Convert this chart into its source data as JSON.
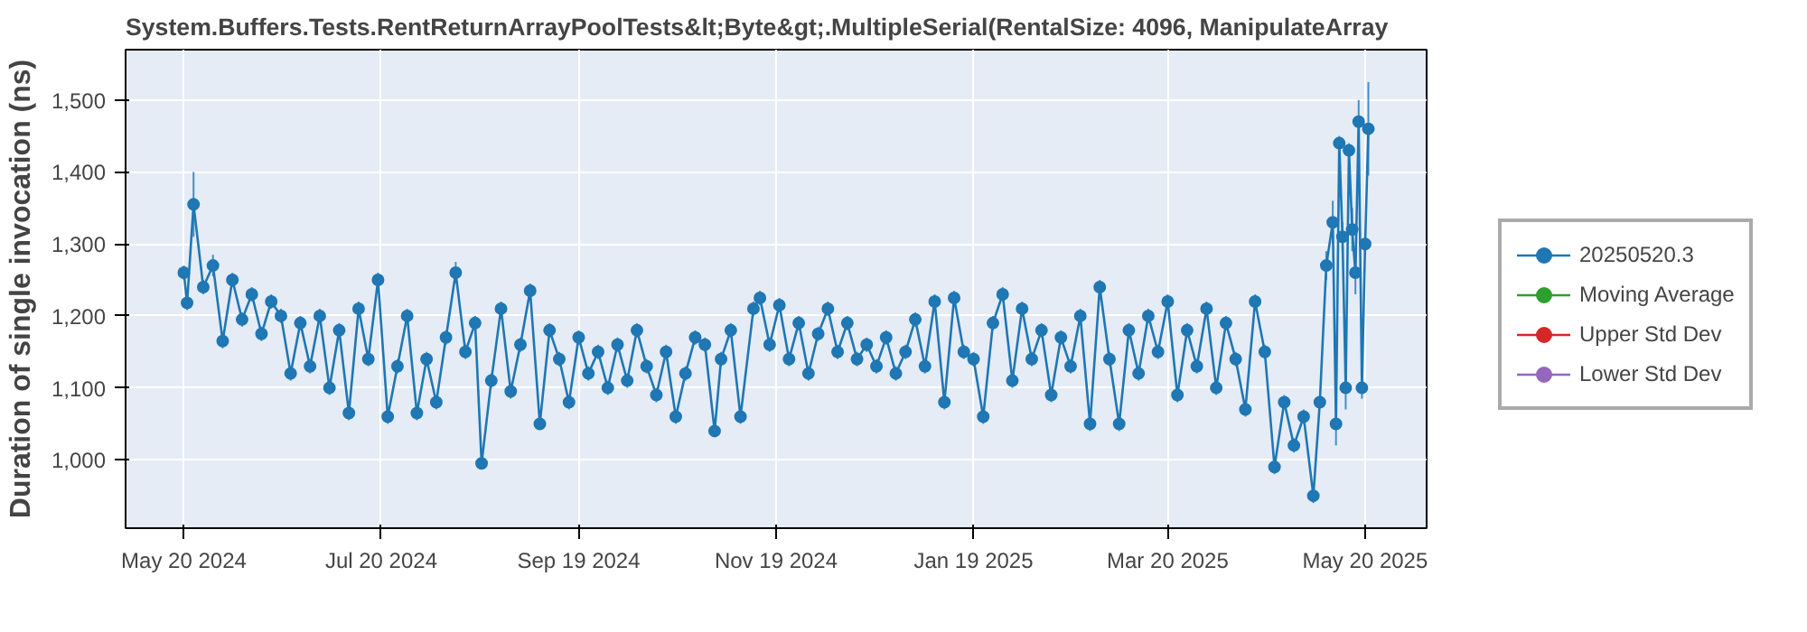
{
  "chart_data": {
    "type": "line",
    "title": "System.Buffers.Tests.RentReturnArrayPoolTests&lt;Byte&gt;.MultipleSerial(RentalSize: 4096, ManipulateArray",
    "ylabel": "Duration of single invocation (ns)",
    "xlim": [
      "2024-05-02",
      "2025-06-08"
    ],
    "ylim": [
      905,
      1570
    ],
    "xticks": [
      {
        "value": "2024-05-20",
        "label": "May 20 2024"
      },
      {
        "value": "2024-07-20",
        "label": "Jul 20 2024"
      },
      {
        "value": "2024-09-19",
        "label": "Sep 19 2024"
      },
      {
        "value": "2024-11-19",
        "label": "Nov 19 2024"
      },
      {
        "value": "2025-01-19",
        "label": "Jan 19 2025"
      },
      {
        "value": "2025-03-20",
        "label": "Mar 20 2025"
      },
      {
        "value": "2025-05-20",
        "label": "May 20 2025"
      }
    ],
    "yticks": [
      {
        "value": 1000,
        "label": "1,000"
      },
      {
        "value": 1100,
        "label": "1,100"
      },
      {
        "value": 1200,
        "label": "1,200"
      },
      {
        "value": 1300,
        "label": "1,300"
      },
      {
        "value": 1400,
        "label": "1,400"
      },
      {
        "value": 1500,
        "label": "1,500"
      }
    ],
    "grid": true,
    "legend": "right",
    "marker": "circle",
    "line_style": "solid",
    "series": [
      {
        "name": "20250520.3",
        "color": "#1f77b4",
        "x": [
          "2024-05-20",
          "2024-05-21",
          "2024-05-23",
          "2024-05-26",
          "2024-05-29",
          "2024-06-01",
          "2024-06-04",
          "2024-06-07",
          "2024-06-10",
          "2024-06-13",
          "2024-06-16",
          "2024-06-19",
          "2024-06-22",
          "2024-06-25",
          "2024-06-28",
          "2024-07-01",
          "2024-07-04",
          "2024-07-07",
          "2024-07-10",
          "2024-07-13",
          "2024-07-16",
          "2024-07-19",
          "2024-07-22",
          "2024-07-25",
          "2024-07-28",
          "2024-07-31",
          "2024-08-03",
          "2024-08-06",
          "2024-08-09",
          "2024-08-12",
          "2024-08-15",
          "2024-08-18",
          "2024-08-20",
          "2024-08-23",
          "2024-08-26",
          "2024-08-29",
          "2024-09-01",
          "2024-09-04",
          "2024-09-07",
          "2024-09-10",
          "2024-09-13",
          "2024-09-16",
          "2024-09-19",
          "2024-09-22",
          "2024-09-25",
          "2024-09-28",
          "2024-10-01",
          "2024-10-04",
          "2024-10-07",
          "2024-10-10",
          "2024-10-13",
          "2024-10-16",
          "2024-10-19",
          "2024-10-22",
          "2024-10-25",
          "2024-10-28",
          "2024-10-31",
          "2024-11-02",
          "2024-11-05",
          "2024-11-08",
          "2024-11-12",
          "2024-11-14",
          "2024-11-17",
          "2024-11-20",
          "2024-11-23",
          "2024-11-26",
          "2024-11-29",
          "2024-12-02",
          "2024-12-05",
          "2024-12-08",
          "2024-12-11",
          "2024-12-14",
          "2024-12-17",
          "2024-12-20",
          "2024-12-23",
          "2024-12-26",
          "2024-12-29",
          "2025-01-01",
          "2025-01-04",
          "2025-01-07",
          "2025-01-10",
          "2025-01-13",
          "2025-01-16",
          "2025-01-19",
          "2025-01-22",
          "2025-01-25",
          "2025-01-28",
          "2025-01-31",
          "2025-02-03",
          "2025-02-06",
          "2025-02-09",
          "2025-02-12",
          "2025-02-15",
          "2025-02-18",
          "2025-02-21",
          "2025-02-24",
          "2025-02-27",
          "2025-03-02",
          "2025-03-05",
          "2025-03-08",
          "2025-03-11",
          "2025-03-14",
          "2025-03-17",
          "2025-03-20",
          "2025-03-23",
          "2025-03-26",
          "2025-03-29",
          "2025-04-01",
          "2025-04-04",
          "2025-04-07",
          "2025-04-10",
          "2025-04-13",
          "2025-04-16",
          "2025-04-19",
          "2025-04-22",
          "2025-04-25",
          "2025-04-28",
          "2025-05-01",
          "2025-05-04",
          "2025-05-06",
          "2025-05-08",
          "2025-05-10",
          "2025-05-11",
          "2025-05-12",
          "2025-05-13",
          "2025-05-14",
          "2025-05-15",
          "2025-05-16",
          "2025-05-17",
          "2025-05-18",
          "2025-05-19",
          "2025-05-20",
          "2025-05-21"
        ],
        "values": [
          1260,
          1218,
          1355,
          1240,
          1270,
          1165,
          1250,
          1195,
          1230,
          1175,
          1220,
          1200,
          1120,
          1190,
          1130,
          1200,
          1100,
          1180,
          1065,
          1210,
          1140,
          1250,
          1060,
          1130,
          1200,
          1065,
          1140,
          1080,
          1170,
          1260,
          1150,
          1190,
          995,
          1110,
          1210,
          1095,
          1160,
          1235,
          1050,
          1180,
          1140,
          1080,
          1170,
          1120,
          1150,
          1100,
          1160,
          1110,
          1180,
          1130,
          1090,
          1150,
          1060,
          1120,
          1170,
          1160,
          1040,
          1140,
          1180,
          1060,
          1210,
          1225,
          1160,
          1215,
          1140,
          1190,
          1120,
          1175,
          1210,
          1150,
          1190,
          1140,
          1160,
          1130,
          1170,
          1120,
          1150,
          1195,
          1130,
          1220,
          1080,
          1225,
          1150,
          1140,
          1060,
          1190,
          1230,
          1110,
          1210,
          1140,
          1180,
          1090,
          1170,
          1130,
          1200,
          1050,
          1240,
          1140,
          1050,
          1180,
          1120,
          1200,
          1150,
          1220,
          1090,
          1180,
          1130,
          1210,
          1100,
          1190,
          1140,
          1070,
          1220,
          1150,
          990,
          1080,
          1020,
          1060,
          950,
          1080,
          1270,
          1330,
          1050,
          1440,
          1310,
          1100,
          1430,
          1320,
          1260,
          1470,
          1100,
          1300,
          1460
        ],
        "errors": [
          10,
          10,
          45,
          10,
          15,
          10,
          10,
          10,
          10,
          10,
          10,
          10,
          10,
          10,
          10,
          10,
          10,
          10,
          10,
          10,
          10,
          10,
          10,
          10,
          10,
          10,
          10,
          10,
          10,
          15,
          10,
          10,
          5,
          10,
          10,
          10,
          10,
          10,
          5,
          10,
          10,
          10,
          10,
          10,
          10,
          10,
          10,
          10,
          10,
          10,
          10,
          10,
          10,
          10,
          10,
          10,
          5,
          10,
          10,
          10,
          10,
          10,
          10,
          10,
          10,
          10,
          10,
          10,
          10,
          10,
          10,
          10,
          10,
          10,
          10,
          10,
          10,
          10,
          10,
          10,
          10,
          10,
          10,
          10,
          10,
          10,
          10,
          10,
          10,
          10,
          10,
          10,
          10,
          10,
          10,
          10,
          10,
          10,
          10,
          10,
          10,
          10,
          10,
          10,
          10,
          10,
          10,
          10,
          10,
          10,
          10,
          10,
          10,
          10,
          10,
          10,
          10,
          10,
          10,
          5,
          20,
          30,
          30,
          10,
          20,
          30,
          10,
          30,
          30,
          30,
          15,
          10,
          65
        ]
      },
      {
        "name": "Moving Average",
        "color": "#2ca02c"
      },
      {
        "name": "Upper Std Dev",
        "color": "#d62728"
      },
      {
        "name": "Lower Std Dev",
        "color": "#9467bd"
      }
    ]
  }
}
